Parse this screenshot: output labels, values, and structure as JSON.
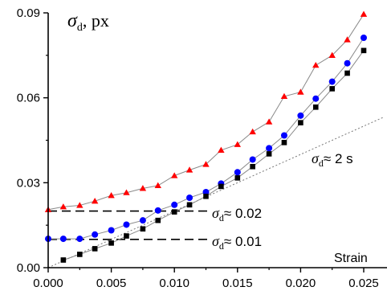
{
  "chart_data": {
    "type": "scatter",
    "ylabel_symbol": "σ",
    "ylabel_subscript": "d",
    "ylabel_unit": ", px",
    "xlabel": "Strain",
    "xlim": [
      0.0,
      0.026
    ],
    "ylim": [
      0.0,
      0.09
    ],
    "xticks": [
      0.0,
      0.005,
      0.01,
      0.015,
      0.02,
      0.025
    ],
    "xtick_labels": [
      "0.000",
      "0.005",
      "0.010",
      "0.015",
      "0.020",
      "0.025"
    ],
    "yticks": [
      0.0,
      0.03,
      0.06,
      0.09
    ],
    "ytick_labels": [
      "0.00",
      "0.03",
      "0.06",
      "0.09"
    ],
    "grid": false,
    "series": [
      {
        "marker": "triangle",
        "color": "#ff0000",
        "x": [
          0.0,
          0.0012,
          0.0025,
          0.0037,
          0.005,
          0.0062,
          0.0075,
          0.0087,
          0.01,
          0.0112,
          0.0125,
          0.0137,
          0.015,
          0.0162,
          0.0175,
          0.0187,
          0.02,
          0.0212,
          0.0225,
          0.0237,
          0.025
        ],
        "y": [
          0.0205,
          0.0215,
          0.022,
          0.0235,
          0.0255,
          0.0265,
          0.028,
          0.029,
          0.0325,
          0.0345,
          0.0365,
          0.0415,
          0.0435,
          0.048,
          0.0515,
          0.0605,
          0.062,
          0.0715,
          0.075,
          0.0805,
          0.0895
        ]
      },
      {
        "marker": "circle",
        "color": "#0000ff",
        "x": [
          0.0,
          0.0012,
          0.0025,
          0.0037,
          0.005,
          0.0062,
          0.0075,
          0.0087,
          0.01,
          0.0112,
          0.0125,
          0.0137,
          0.015,
          0.0162,
          0.0175,
          0.0187,
          0.02,
          0.0212,
          0.0225,
          0.0237,
          0.025
        ],
        "y": [
          0.0102,
          0.0102,
          0.0102,
          0.0117,
          0.0132,
          0.0152,
          0.0167,
          0.0202,
          0.0222,
          0.0247,
          0.0267,
          0.0297,
          0.0337,
          0.0382,
          0.0422,
          0.0467,
          0.0537,
          0.0597,
          0.0657,
          0.0722,
          0.0812
        ]
      },
      {
        "marker": "square",
        "color": "#000000",
        "x": [
          0.0012,
          0.0025,
          0.0037,
          0.005,
          0.0062,
          0.0075,
          0.0087,
          0.01,
          0.0112,
          0.0125,
          0.0137,
          0.015,
          0.0162,
          0.0175,
          0.0187,
          0.02,
          0.0212,
          0.0225,
          0.0237,
          0.025
        ],
        "y": [
          0.0027,
          0.0047,
          0.0067,
          0.0087,
          0.0112,
          0.0137,
          0.0167,
          0.0197,
          0.0222,
          0.0252,
          0.0287,
          0.0317,
          0.0357,
          0.0402,
          0.0442,
          0.0512,
          0.0567,
          0.0632,
          0.0687,
          0.0767
        ]
      }
    ],
    "reference_line": {
      "slope": 2,
      "label": "σ",
      "label_sub": "d",
      "label_rest": "≈ 2 s"
    },
    "annotations": [
      {
        "y": 0.02,
        "x_end": 0.0105,
        "label": "σ",
        "label_sub": "d",
        "label_rest": "≈ 0.02"
      },
      {
        "y": 0.01,
        "x_end": 0.0105,
        "label": "σ",
        "label_sub": "d",
        "label_rest": "≈ 0.01"
      }
    ]
  }
}
